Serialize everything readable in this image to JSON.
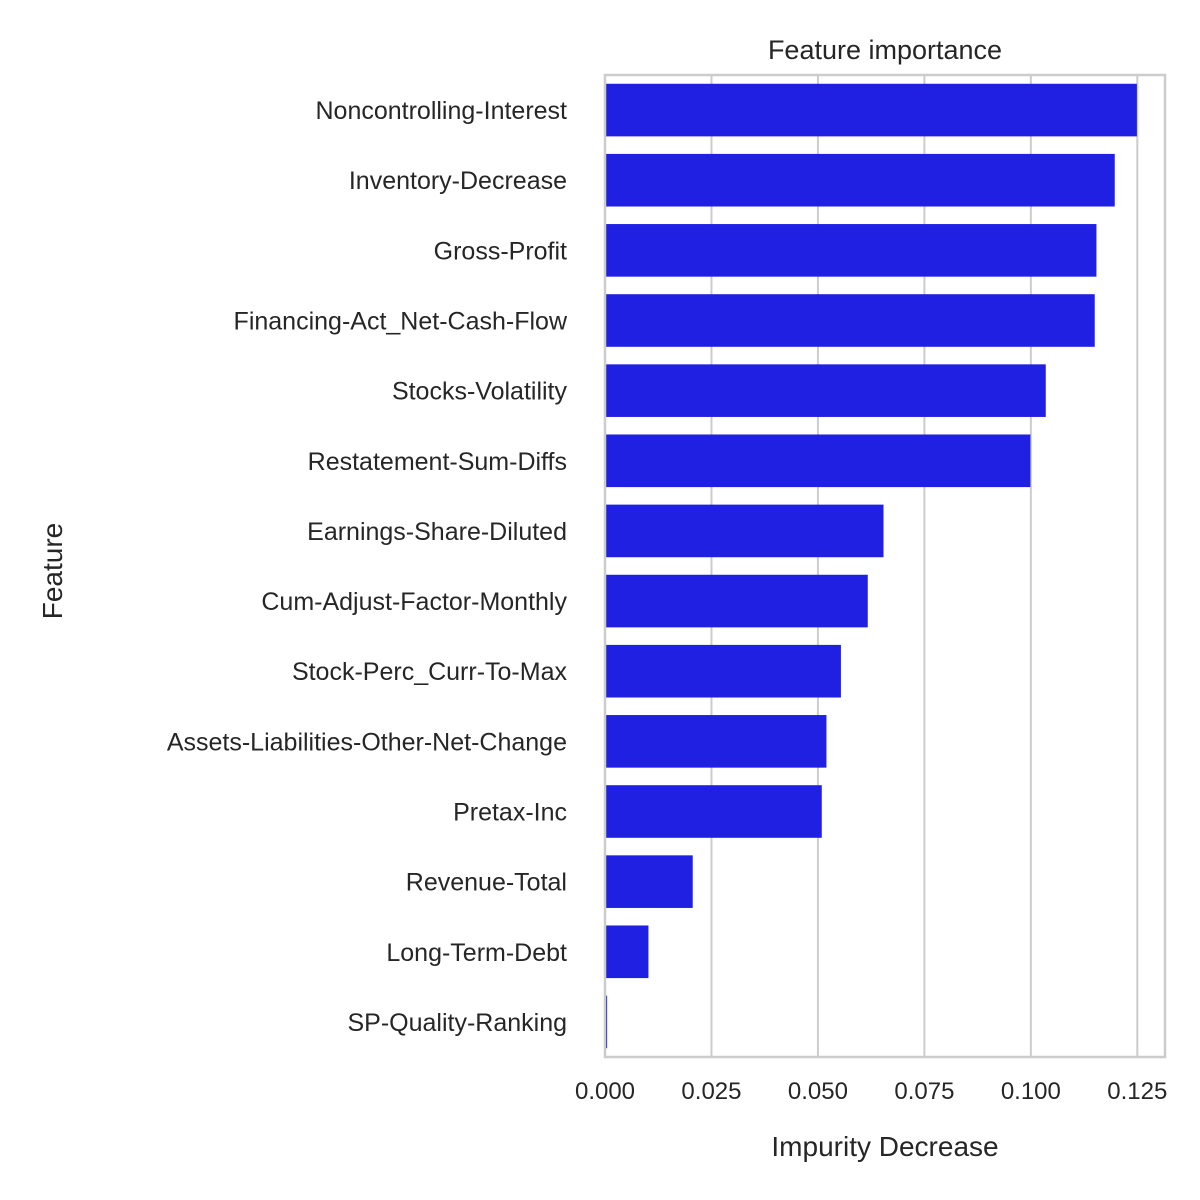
{
  "chart_data": {
    "type": "bar",
    "orientation": "horizontal",
    "title": "Feature importance",
    "xlabel": "Impurity Decrease",
    "ylabel": "Feature",
    "xlim": [
      0,
      0.1315
    ],
    "xticks": [
      0.0,
      0.025,
      0.05,
      0.075,
      0.1,
      0.125
    ],
    "xtick_labels": [
      "0.000",
      "0.025",
      "0.050",
      "0.075",
      "0.100",
      "0.125"
    ],
    "grid": "vertical",
    "bar_color": "#2020e3",
    "categories": [
      "Noncontrolling-Interest",
      "Inventory-Decrease",
      "Gross-Profit",
      "Financing-Act_Net-Cash-Flow",
      "Stocks-Volatility",
      "Restatement-Sum-Diffs",
      "Earnings-Share-Diluted",
      "Cum-Adjust-Factor-Monthly",
      "Stock-Perc_Curr-To-Max",
      "Assets-Liabilities-Other-Net-Change",
      "Pretax-Inc",
      "Revenue-Total",
      "Long-Term-Debt",
      "SP-Quality-Ranking"
    ],
    "values": [
      0.1249,
      0.1197,
      0.1154,
      0.115,
      0.1035,
      0.0999,
      0.0654,
      0.0617,
      0.0554,
      0.052,
      0.0509,
      0.0206,
      0.0102,
      0.0005
    ]
  }
}
